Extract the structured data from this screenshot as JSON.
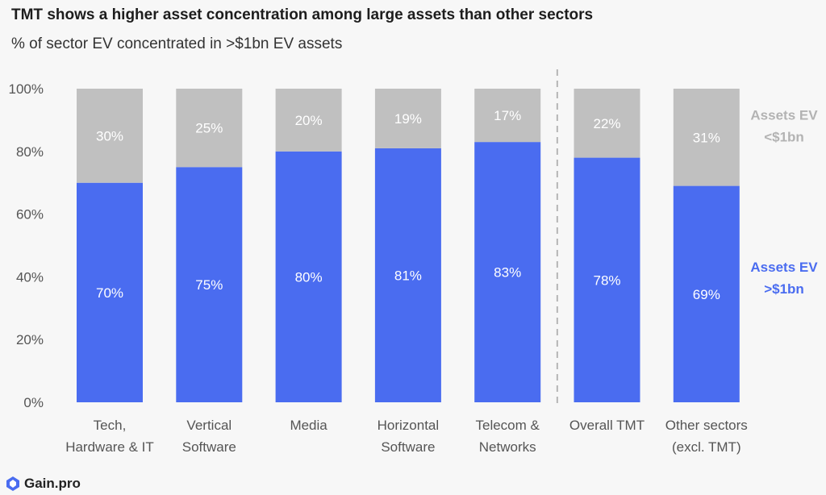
{
  "title": "TMT shows a higher asset concentration among large assets than other sectors",
  "subtitle": "% of sector EV concentrated in >$1bn EV assets",
  "logo_text": "Gain.pro",
  "colors": {
    "large": "#4a6cf0",
    "small": "#c0c0c0",
    "large_label": "#4a6cf0",
    "small_label": "#b3b3b3",
    "axis_text": "#555555",
    "divider": "#b5b5b5"
  },
  "chart_data": {
    "type": "bar",
    "stacked": true,
    "categories": [
      [
        "Tech,",
        "Hardware & IT"
      ],
      [
        "Vertical",
        "Software"
      ],
      [
        "Media"
      ],
      [
        "Horizontal",
        "Software"
      ],
      [
        "Telecom &",
        "Networks"
      ],
      [
        "Overall TMT"
      ],
      [
        "Other sectors",
        "(excl. TMT)"
      ]
    ],
    "series": [
      {
        "name": [
          "Assets EV",
          ">$1bn"
        ],
        "values": [
          70,
          75,
          80,
          81,
          83,
          78,
          69
        ],
        "labels": [
          "70%",
          "75%",
          "80%",
          "81%",
          "83%",
          "78%",
          "69%"
        ]
      },
      {
        "name": [
          "Assets EV",
          "<$1bn"
        ],
        "values": [
          30,
          25,
          20,
          19,
          17,
          22,
          31
        ],
        "labels": [
          "30%",
          "25%",
          "20%",
          "19%",
          "17%",
          "22%",
          "31%"
        ]
      }
    ],
    "ylim": [
      0,
      100
    ],
    "yticks": [
      0,
      20,
      40,
      60,
      80,
      100
    ],
    "ytick_labels": [
      "0%",
      "20%",
      "40%",
      "60%",
      "80%",
      "100%"
    ],
    "divider_after_category": 4,
    "grid": false,
    "legend": "right"
  }
}
